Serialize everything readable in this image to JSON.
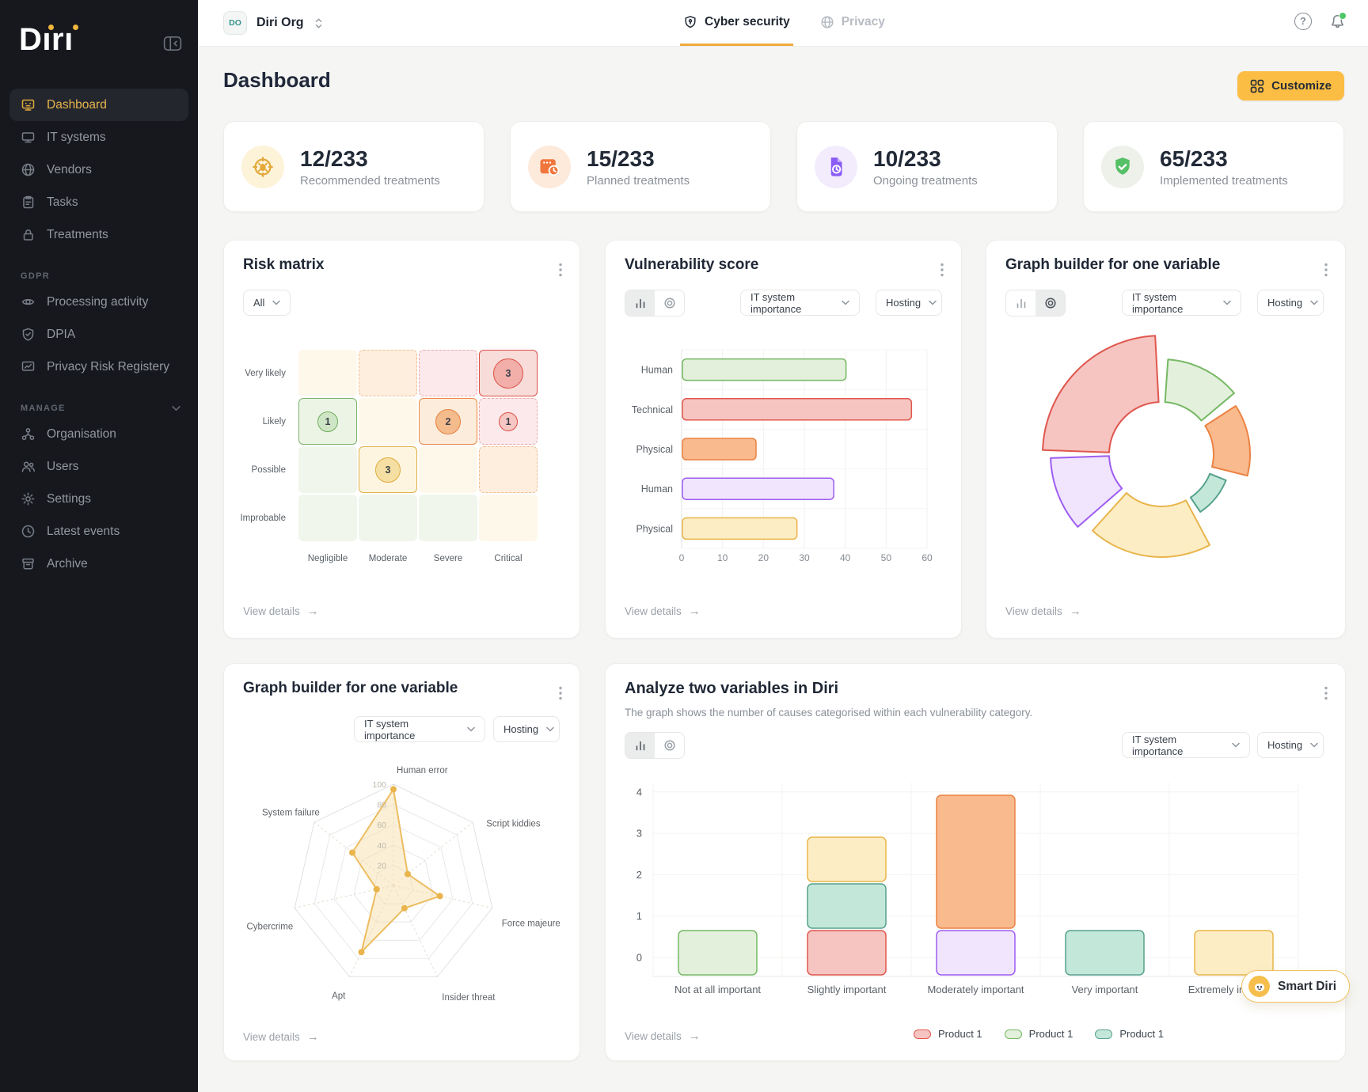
{
  "app": {
    "logo_text": "Diri"
  },
  "sidebar": {
    "sections": [
      {
        "heading": null,
        "items": [
          {
            "label": "Dashboard",
            "icon": "dashboard-icon",
            "active": true
          },
          {
            "label": "IT systems",
            "icon": "it-systems-icon",
            "active": false
          },
          {
            "label": "Vendors",
            "icon": "vendors-icon",
            "active": false
          },
          {
            "label": "Tasks",
            "icon": "tasks-icon",
            "active": false
          },
          {
            "label": "Treatments",
            "icon": "treatments-icon",
            "active": false
          }
        ]
      },
      {
        "heading": "GDPR",
        "collapsible": false,
        "items": [
          {
            "label": "Processing activity",
            "icon": "processing-activity-icon",
            "active": false
          },
          {
            "label": "DPIA",
            "icon": "dpia-icon",
            "active": false
          },
          {
            "label": "Privacy Risk Registery",
            "icon": "privacy-risk-icon",
            "active": false
          }
        ]
      },
      {
        "heading": "MANAGE",
        "collapsible": true,
        "items": [
          {
            "label": "Organisation",
            "icon": "organisation-icon",
            "active": false
          },
          {
            "label": "Users",
            "icon": "users-icon",
            "active": false
          },
          {
            "label": "Settings",
            "icon": "settings-icon",
            "active": false
          },
          {
            "label": "Latest events",
            "icon": "latest-events-icon",
            "active": false
          },
          {
            "label": "Archive",
            "icon": "archive-icon",
            "active": false
          }
        ]
      }
    ]
  },
  "topbar": {
    "org": {
      "initials": "DO",
      "name": "Diri Org"
    },
    "tabs": [
      {
        "label": "Cyber security",
        "icon": "shield-icon",
        "active": true
      },
      {
        "label": "Privacy",
        "icon": "globe-icon",
        "active": false
      }
    ]
  },
  "page": {
    "title": "Dashboard",
    "customize_label": "Customize"
  },
  "stats": [
    {
      "value": "12/233",
      "label": "Recommended treatments",
      "icon": "target-icon",
      "bg": "#fdf3d9"
    },
    {
      "value": "15/233",
      "label": "Planned treatments",
      "icon": "calendar-clock-icon",
      "bg": "#fdeadb"
    },
    {
      "value": "10/233",
      "label": "Ongoing treatments",
      "icon": "file-clock-icon",
      "bg": "#f3ecfd"
    },
    {
      "value": "65/233",
      "label": "Implemented treatments",
      "icon": "shield-check-icon",
      "bg": "#eef0ea"
    }
  ],
  "view_details_label": "View details",
  "palette": {
    "green": {
      "fill": "#e3f0db",
      "stroke": "#76b865"
    },
    "red": {
      "fill": "#f6c5c1",
      "stroke": "#df574e"
    },
    "orange": {
      "fill": "#f9ba8e",
      "stroke": "#ec8243"
    },
    "purple": {
      "fill": "#f0e5fc",
      "stroke": "#9e5cf2"
    },
    "yellow": {
      "fill": "#fdedc5",
      "stroke": "#e8b54b"
    },
    "teal": {
      "fill": "#c3e8da",
      "stroke": "#56a18d"
    }
  },
  "cards": {
    "risk_matrix": {
      "title": "Risk matrix",
      "filter": {
        "label": "All"
      },
      "row_labels": [
        "Very likely",
        "Likely",
        "Possible",
        "Improbable"
      ],
      "col_labels": [
        "Negligible",
        "Moderate",
        "Severe",
        "Critical"
      ],
      "cells": [
        [
          "cream",
          "orange-dot",
          "pink-dot",
          "red-solid"
        ],
        [
          "green-solid",
          "cream",
          "orange-solid",
          "pink-dot"
        ],
        [
          "green-soft",
          "yellow-solid",
          "cream",
          "orange-dot"
        ],
        [
          "green-soft",
          "green-soft",
          "green-soft",
          "cream"
        ]
      ],
      "badges": [
        {
          "row": 0,
          "col": 3,
          "value": 3,
          "size": 38,
          "style": "red"
        },
        {
          "row": 1,
          "col": 0,
          "value": 1,
          "size": 26,
          "style": "green"
        },
        {
          "row": 1,
          "col": 2,
          "value": 2,
          "size": 32,
          "style": "orange"
        },
        {
          "row": 1,
          "col": 3,
          "value": 1,
          "size": 24,
          "style": "pink"
        },
        {
          "row": 2,
          "col": 1,
          "value": 3,
          "size": 32,
          "style": "yellow"
        }
      ]
    },
    "vulnerability": {
      "title": "Vulnerability score",
      "filters": [
        "IT system importance",
        "Hosting"
      ],
      "chart": {
        "type": "bar",
        "rows": [
          {
            "label": "Human",
            "value": 40,
            "color": "green"
          },
          {
            "label": "Technical",
            "value": 56,
            "color": "red"
          },
          {
            "label": "Physical",
            "value": 18,
            "color": "orange"
          },
          {
            "label": "Human",
            "value": 37,
            "color": "purple"
          },
          {
            "label": "Physical",
            "value": 28,
            "color": "yellow"
          }
        ],
        "x_ticks": [
          0,
          10,
          20,
          30,
          40,
          50,
          60
        ],
        "x_max": 60
      }
    },
    "donut_builder": {
      "title": "Graph builder for one variable",
      "filters": [
        "IT system importance",
        "Hosting"
      ],
      "chart": {
        "type": "donut",
        "inner_radius": 66,
        "segments": [
          {
            "color": "red",
            "start": 272,
            "end": 357,
            "outer_radius": 150
          },
          {
            "color": "green",
            "start": 4,
            "end": 50,
            "outer_radius": 120
          },
          {
            "color": "orange",
            "start": 57,
            "end": 104,
            "outer_radius": 112
          },
          {
            "color": "teal",
            "start": 112,
            "end": 146,
            "outer_radius": 88
          },
          {
            "color": "yellow",
            "start": 152,
            "end": 222,
            "outer_radius": 130
          },
          {
            "color": "purple",
            "start": 229,
            "end": 268,
            "outer_radius": 140
          }
        ]
      }
    },
    "radar_builder": {
      "title": "Graph builder for one variable",
      "filters": [
        "IT system importance",
        "Hosting"
      ],
      "chart": {
        "type": "radar",
        "max": 100,
        "ticks": [
          20,
          40,
          60,
          80,
          100
        ],
        "axes": [
          {
            "label": "Human error",
            "value": 95
          },
          {
            "label": "Script kiddies",
            "value": 18
          },
          {
            "label": "Force majeure",
            "value": 47
          },
          {
            "label": "Insider threat",
            "value": 25
          },
          {
            "label": "Apt",
            "value": 73
          },
          {
            "label": "Cybercrime",
            "value": 17
          },
          {
            "label": "System failure",
            "value": 52
          }
        ]
      }
    },
    "analyze": {
      "title": "Analyze two variables in Diri",
      "subtitle": "The graph shows the number of causes categorised within each vulnerability category.",
      "filters": [
        "IT system importance",
        "Hosting"
      ],
      "chart": {
        "type": "bar-stacked",
        "categories": [
          "Not at all important",
          "Slightly important",
          "Moderately important",
          "Very important",
          "Extremely important"
        ],
        "y_ticks": [
          0,
          1,
          2,
          3,
          4
        ],
        "stacks": [
          [
            {
              "color": "green",
              "value": 1
            }
          ],
          [
            {
              "color": "red",
              "value": 1
            },
            {
              "color": "teal",
              "value": 1
            },
            {
              "color": "yellow",
              "value": 1
            }
          ],
          [
            {
              "color": "purple",
              "value": 1
            },
            {
              "color": "orange",
              "value": 3
            }
          ],
          [
            {
              "color": "teal",
              "value": 1
            }
          ],
          [
            {
              "color": "yellow",
              "value": 1
            }
          ]
        ],
        "legend": [
          {
            "label": "Product 1",
            "color": "red"
          },
          {
            "label": "Product 1",
            "color": "green"
          },
          {
            "label": "Product 1",
            "color": "teal"
          }
        ]
      }
    }
  },
  "smart_diri": {
    "label": "Smart Diri"
  }
}
